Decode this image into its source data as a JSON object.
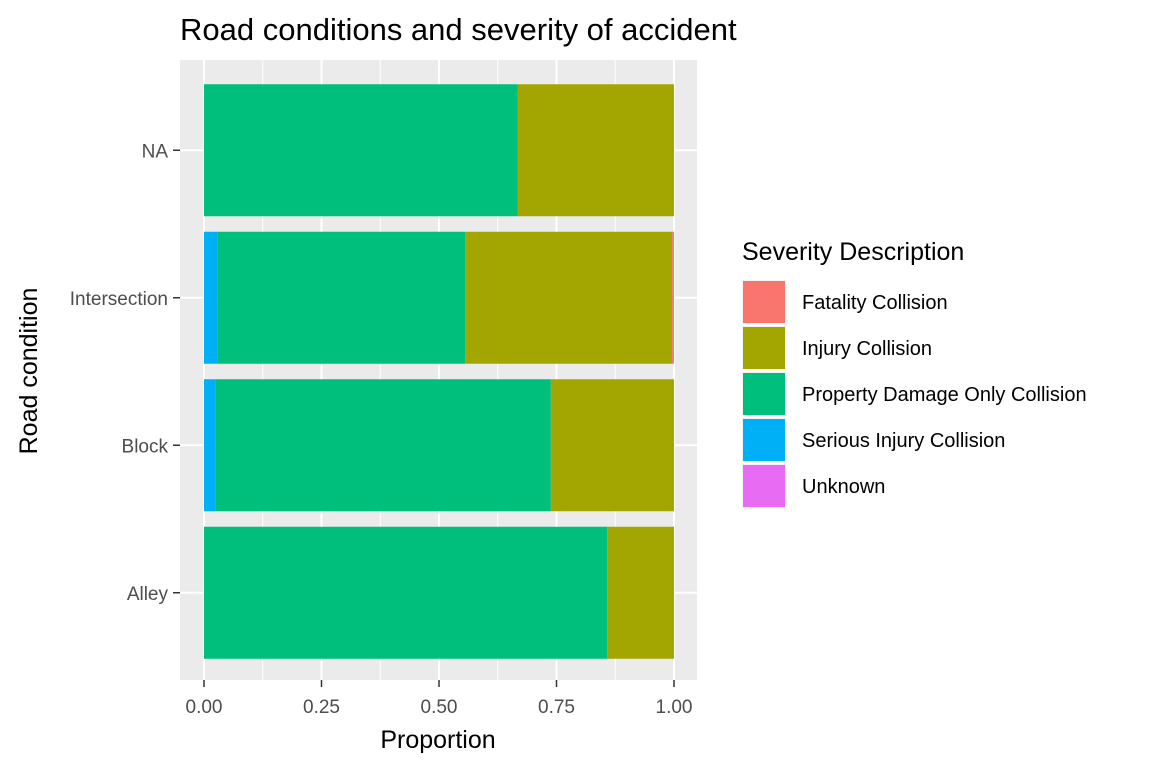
{
  "chart_data": {
    "type": "bar",
    "orientation": "horizontal",
    "stacked": true,
    "title": "Road conditions and severity of accident",
    "xlabel": "Proportion",
    "ylabel": "Road condition",
    "xlim": [
      0,
      1
    ],
    "xticks": [
      "0.00",
      "0.25",
      "0.50",
      "0.75",
      "1.00"
    ],
    "grid": true,
    "legend_position": "right",
    "legend_title": "Severity Description",
    "categories": [
      "Alley",
      "Block",
      "Intersection",
      "NA"
    ],
    "series": [
      {
        "name": "Fatality Collision",
        "color": "#F8766D",
        "values": [
          0.0,
          0.0,
          0.004,
          0.0
        ]
      },
      {
        "name": "Injury Collision",
        "color": "#A3A500",
        "values": [
          0.142,
          0.262,
          0.44,
          0.333
        ]
      },
      {
        "name": "Property Damage Only Collision",
        "color": "#00BF7D",
        "values": [
          0.858,
          0.714,
          0.527,
          0.667
        ]
      },
      {
        "name": "Serious Injury Collision",
        "color": "#00B0F6",
        "values": [
          0.0,
          0.024,
          0.029,
          0.0
        ]
      },
      {
        "name": "Unknown",
        "color": "#E76BF3",
        "values": [
          0.0,
          0.0,
          0.0,
          0.0
        ]
      }
    ]
  }
}
